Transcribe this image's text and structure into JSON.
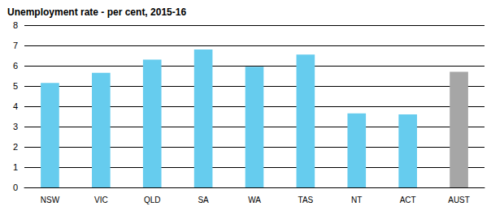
{
  "chart_data": {
    "type": "bar",
    "title": "Unemployment rate - per cent, 2015-16",
    "categories": [
      "NSW",
      "VIC",
      "QLD",
      "SA",
      "WA",
      "TAS",
      "NT",
      "ACT",
      "AUST"
    ],
    "values": [
      5.15,
      5.65,
      6.3,
      6.8,
      5.95,
      6.55,
      3.65,
      3.6,
      5.7
    ],
    "colors": [
      "#66ccee",
      "#66ccee",
      "#66ccee",
      "#66ccee",
      "#66ccee",
      "#66ccee",
      "#66ccee",
      "#66ccee",
      "#a6a6a6"
    ],
    "ylim": [
      0,
      8
    ],
    "yticks": [
      0,
      1,
      2,
      3,
      4,
      5,
      6,
      7,
      8
    ],
    "grid": true
  }
}
